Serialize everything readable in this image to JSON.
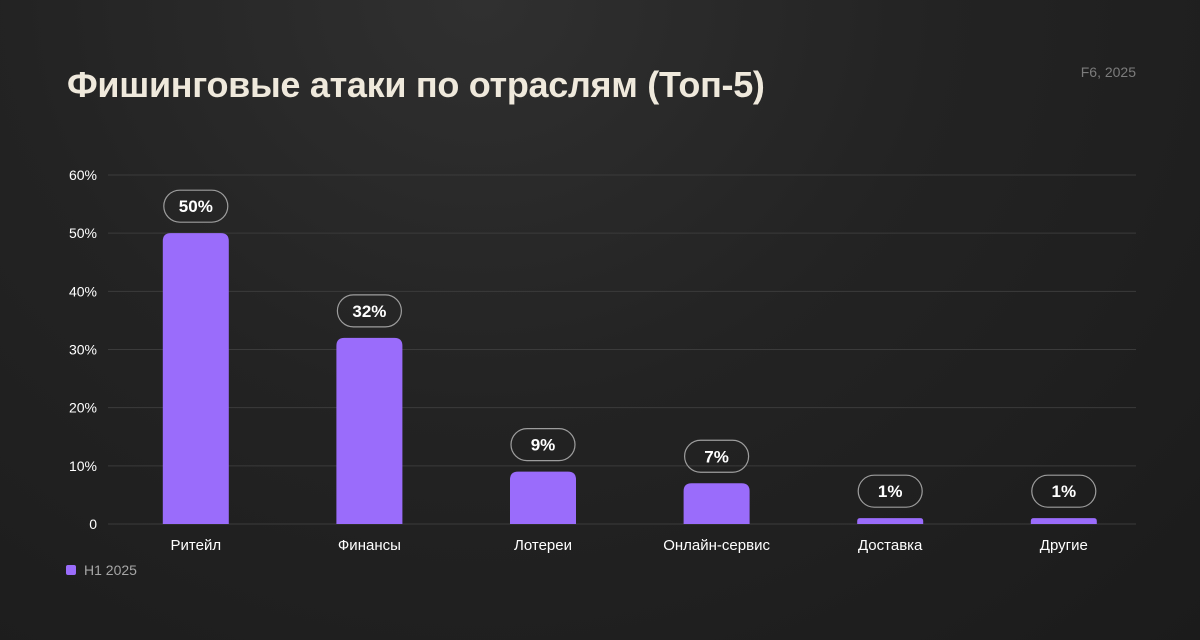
{
  "header": {
    "title": "Фишинговые атаки по отраслям (Топ-5)",
    "source": "F6, 2025"
  },
  "legend": {
    "label": "H1 2025"
  },
  "colors": {
    "bar": "#9a6cfb",
    "grid": "#3b3b3b",
    "label_text": "#ffffff",
    "axis_text": "#ffffff",
    "pill_border": "#9d9d9d"
  },
  "chart_data": {
    "type": "bar",
    "categories": [
      "Ритейл",
      "Финансы",
      "Лотереи",
      "Онлайн-сервис",
      "Доставка",
      "Другие"
    ],
    "series": [
      {
        "name": "H1 2025",
        "values": [
          50,
          32,
          9,
          7,
          1,
          1
        ],
        "labels": [
          "50%",
          "32%",
          "9%",
          "7%",
          "1%",
          "1%"
        ]
      }
    ],
    "yticks": [
      "0",
      "10%",
      "20%",
      "30%",
      "40%",
      "50%",
      "60%"
    ],
    "ylim": [
      0,
      60
    ],
    "grid": true,
    "legend_position": "bottom-left"
  }
}
